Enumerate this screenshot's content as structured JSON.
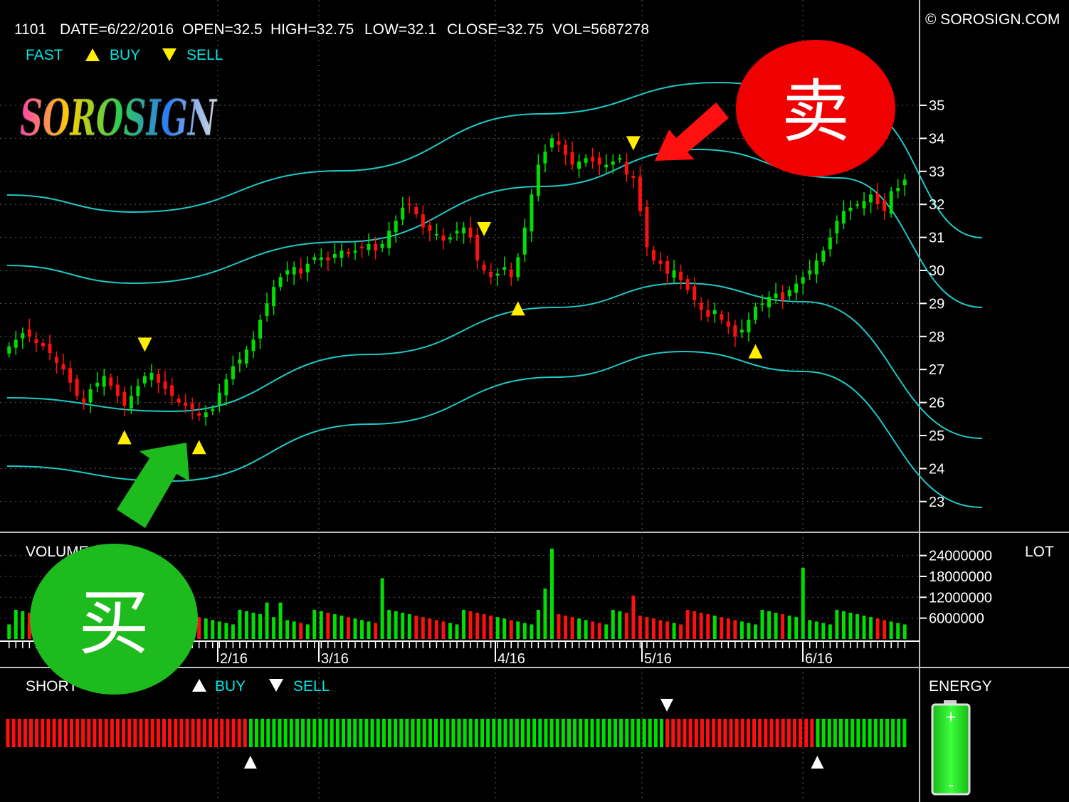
{
  "header": {
    "symbol": "1101",
    "date": "DATE=6/22/2016",
    "open": "OPEN=32.5",
    "high": "HIGH=32.75",
    "low": "LOW=32.1",
    "close": "CLOSE=32.75",
    "vol": "VOL=5687278",
    "copyright": "© SOROSIGN.COM"
  },
  "legend": {
    "fast": "FAST",
    "buy": "BUY",
    "sell": "SELL"
  },
  "logo": {
    "text": "SOROSIGN"
  },
  "colors": {
    "up": "#00e000",
    "down": "#ff1010",
    "band": "#1ec8c8",
    "signal": "#ffee00",
    "buy_bubble": "#1dbb1d",
    "sell_bubble": "#f00000"
  },
  "chart_data": [
    {
      "type": "candlestick",
      "symbol": "1101",
      "y_ticks": [
        "35",
        "34",
        "33",
        "32",
        "31",
        "30",
        "29",
        "28",
        "27",
        "26",
        "25",
        "24",
        "23"
      ],
      "ylim": [
        22.5,
        35.8
      ],
      "x_tick_labels": [
        "2/16",
        "3/16",
        "4/16",
        "5/16",
        "6/16"
      ],
      "close_approx": [
        27.7,
        27.9,
        28.1,
        28.0,
        27.8,
        27.7,
        27.5,
        27.2,
        27.0,
        26.6,
        26.2,
        26.0,
        26.4,
        26.6,
        26.8,
        26.5,
        26.2,
        25.9,
        26.2,
        26.5,
        26.8,
        26.9,
        26.6,
        26.4,
        26.2,
        26.0,
        25.9,
        25.8,
        25.6,
        25.7,
        25.8,
        26.3,
        26.7,
        27.1,
        27.3,
        27.6,
        27.9,
        28.5,
        29.0,
        29.5,
        29.8,
        30.0,
        30.1,
        29.9,
        30.2,
        30.4,
        30.4,
        30.3,
        30.5,
        30.6,
        30.5,
        30.6,
        30.7,
        30.8,
        30.6,
        30.8,
        31.2,
        31.5,
        31.9,
        32.0,
        31.7,
        31.3,
        31.2,
        31.1,
        30.9,
        31.0,
        31.2,
        31.3,
        31.0,
        30.3,
        30.0,
        29.8,
        29.9,
        30.1,
        29.8,
        30.4,
        31.3,
        32.3,
        33.2,
        33.6,
        34.0,
        33.8,
        33.5,
        33.2,
        33.3,
        33.4,
        33.3,
        33.2,
        33.2,
        33.3,
        33.4,
        32.9,
        32.8,
        31.8,
        30.7,
        30.3,
        30.2,
        29.9,
        30.0,
        29.7,
        29.4,
        29.1,
        28.8,
        28.6,
        28.8,
        28.5,
        28.3,
        28.0,
        28.2,
        28.5,
        28.9,
        29.0,
        29.2,
        29.3,
        29.1,
        29.4,
        29.6,
        29.8,
        30.0,
        30.3,
        30.6,
        31.0,
        31.5,
        31.8,
        31.9,
        32.0,
        32.1,
        32.3,
        32.0,
        31.8,
        32.4,
        32.5,
        32.75
      ],
      "buy_signals": [
        "near 2/16 low",
        "after 4/16 dip",
        "late May low"
      ],
      "sell_signals": [
        "late Jan",
        "early Apr",
        "end of Apr"
      ]
    },
    {
      "type": "bar",
      "name": "VOLUME",
      "unit": "LOT",
      "y_ticks": [
        "24000000",
        "18000000",
        "12000000",
        "6000000"
      ],
      "ylim": [
        0,
        27000000
      ]
    },
    {
      "type": "bar",
      "name": "SHORT TERM",
      "label_visible": "SHORT",
      "segments": [
        {
          "state": "sell",
          "bars": 42
        },
        {
          "state": "buy",
          "bars": 72
        },
        {
          "state": "sell",
          "bars": 26
        },
        {
          "state": "buy",
          "bars": 16
        }
      ]
    }
  ],
  "panels": {
    "volume_label": "VOLUME",
    "lot_label": "LOT",
    "short_label": "SHORT",
    "buy_label": "BUY",
    "sell_label": "SELL",
    "energy_label": "ENERGY"
  },
  "annotations": {
    "buy_char": "买",
    "sell_char": "卖"
  }
}
